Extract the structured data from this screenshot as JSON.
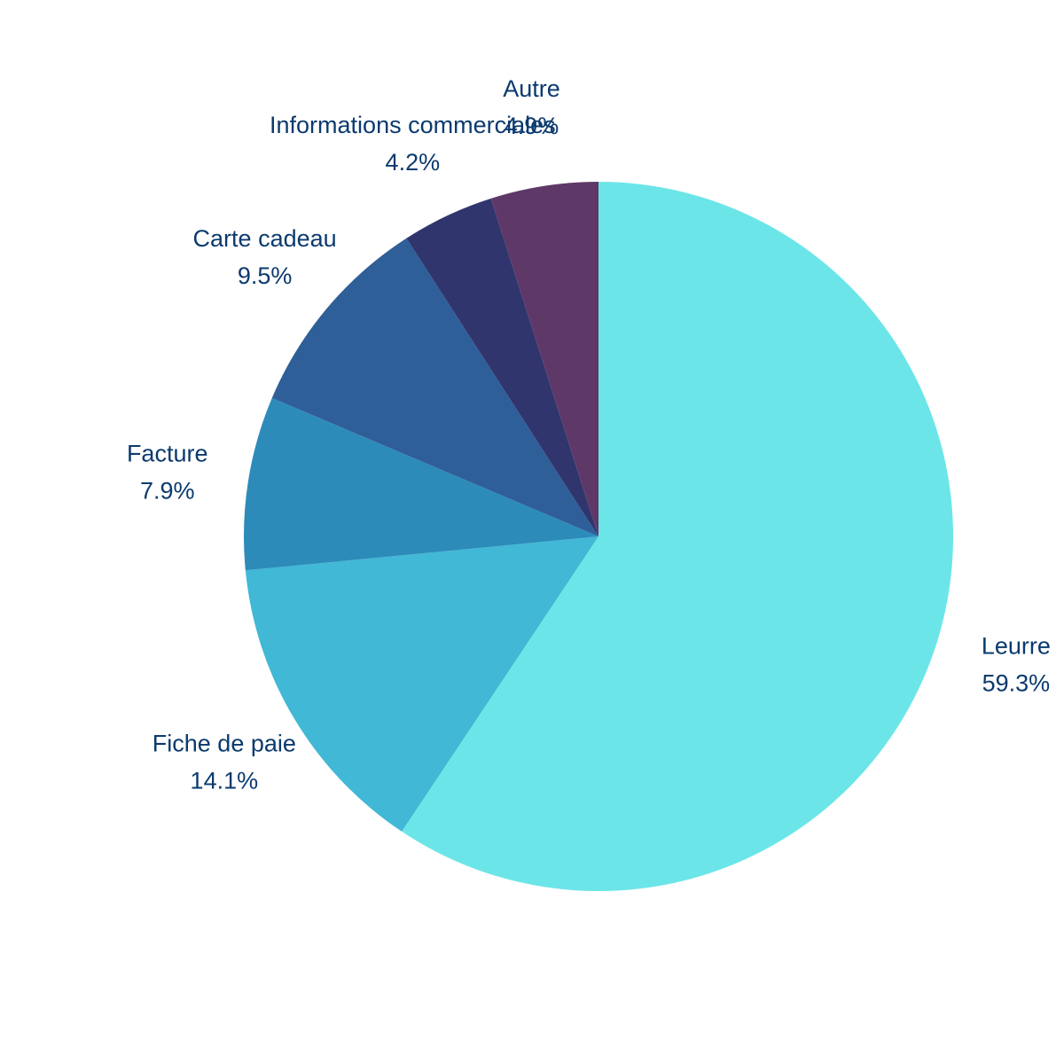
{
  "chart_data": {
    "type": "pie",
    "title": "",
    "start": "12 o'clock",
    "direction": "clockwise",
    "slices": [
      {
        "label": "Leurre",
        "value": 59.3,
        "display": "59.3%",
        "color": "#6ce5e8"
      },
      {
        "label": "Fiche de paie",
        "value": 14.1,
        "display": "14.1%",
        "color": "#41b8d5"
      },
      {
        "label": "Facture",
        "value": 7.9,
        "display": "7.9%",
        "color": "#2d8bba"
      },
      {
        "label": "Carte cadeau",
        "value": 9.5,
        "display": "9.5%",
        "color": "#2f5f98"
      },
      {
        "label": "Informations commerciales",
        "value": 4.2,
        "display": "4.2%",
        "color": "#31356e"
      },
      {
        "label": "Autre",
        "value": 4.9,
        "display": "4.9%",
        "color": "#5e3967"
      }
    ]
  }
}
